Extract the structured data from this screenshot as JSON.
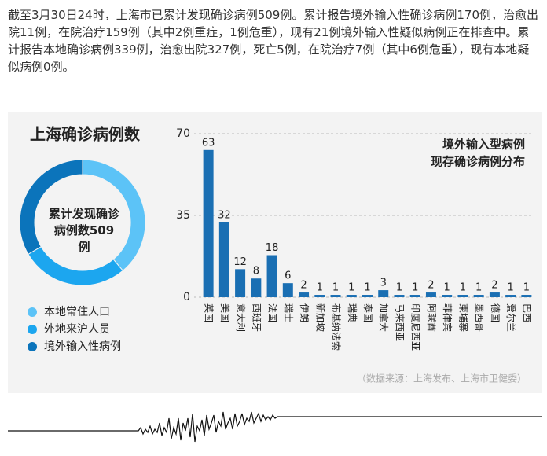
{
  "paragraph": "截至3月30日24时，上海市已累计发现确诊病例509例。累计报告境外输入性确诊病例170例，治愈出院11例，在院治疗159例（其中2例重症，1例危重），现有21例境外输入性疑似病例正在排查中。累计报告本地确诊病例339例，治愈出院327例，死亡5例，在院治疗7例（其中6例危重），现有本地疑似病例0例。",
  "source": "（数据来源：上海发布、上海市卫健委）",
  "chart_data": [
    {
      "type": "pie",
      "title": "上海确诊病例数",
      "center_label": "累计发现确诊病例数509例",
      "categories": [
        "本地常住人口",
        "外地来沪人员",
        "境外输入性病例"
      ],
      "values": [
        198,
        141,
        170
      ],
      "colors": [
        "#5cc3f7",
        "#1ca6ef",
        "#0b74bb"
      ]
    },
    {
      "type": "bar",
      "title_lines": [
        "境外输入型病例",
        "现存确诊病例分布"
      ],
      "categories": [
        "英国",
        "美国",
        "意大利",
        "西班牙",
        "法国",
        "瑞士",
        "伊朗",
        "新加坡",
        "布基纳法索",
        "瑞典",
        "泰国",
        "加拿大",
        "马来西亚",
        "印度尼西亚",
        "阿联酋",
        "菲律宾",
        "柬埔寨",
        "墨西哥",
        "德国",
        "爱尔兰",
        "巴西"
      ],
      "values": [
        63,
        32,
        12,
        8,
        18,
        6,
        2,
        1,
        1,
        1,
        1,
        3,
        1,
        1,
        2,
        1,
        1,
        1,
        2,
        1,
        1
      ],
      "color": "#1a6fb3",
      "ylim": [
        0,
        70
      ],
      "yticks": [
        0,
        35,
        70
      ],
      "grid": true
    }
  ]
}
